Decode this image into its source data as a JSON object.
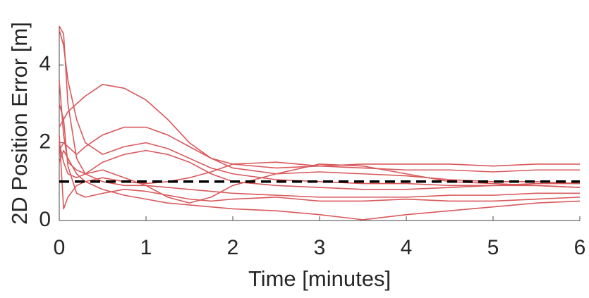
{
  "chart_data": {
    "type": "line",
    "xlabel": "Time [minutes]",
    "ylabel": "2D Position Error [m]",
    "x": [
      0,
      0.05,
      0.1,
      0.2,
      0.3,
      0.5,
      0.75,
      1,
      1.25,
      1.5,
      1.75,
      2,
      2.5,
      3,
      3.5,
      4,
      4.5,
      5,
      5.5,
      6
    ],
    "series": [
      {
        "color": "#d9595c",
        "values": [
          2.4,
          2.6,
          2.8,
          3.0,
          3.2,
          3.5,
          3.4,
          3.1,
          2.6,
          2.0,
          1.6,
          1.35,
          1.2,
          1.25,
          1.2,
          1.15,
          1.05,
          1.0,
          1.0,
          0.95
        ]
      },
      {
        "color": "#d9595c",
        "values": [
          1.8,
          2.0,
          1.9,
          1.7,
          1.9,
          2.2,
          2.4,
          2.4,
          2.2,
          1.9,
          1.6,
          1.45,
          1.35,
          1.4,
          1.35,
          1.3,
          1.3,
          1.25,
          1.3,
          1.3
        ]
      },
      {
        "color": "#d9595c",
        "values": [
          4.9,
          4.5,
          3.6,
          2.6,
          2.0,
          1.7,
          1.9,
          2.0,
          1.85,
          1.6,
          1.35,
          1.2,
          1.05,
          1.0,
          0.95,
          0.95,
          0.9,
          0.9,
          0.9,
          0.85
        ]
      },
      {
        "color": "#d9595c",
        "values": [
          5.0,
          4.8,
          3.0,
          1.6,
          1.2,
          1.0,
          0.9,
          0.9,
          0.85,
          0.8,
          0.75,
          0.7,
          0.65,
          0.6,
          0.6,
          0.6,
          0.65,
          0.65,
          0.7,
          0.7
        ]
      },
      {
        "color": "#d9595c",
        "values": [
          2.2,
          0.3,
          0.6,
          0.9,
          1.0,
          1.1,
          1.0,
          0.95,
          1.0,
          1.1,
          1.25,
          1.45,
          1.5,
          1.4,
          1.45,
          1.45,
          1.45,
          1.4,
          1.45,
          1.45
        ]
      },
      {
        "color": "#d9595c",
        "values": [
          3.6,
          2.2,
          1.5,
          1.3,
          1.2,
          1.3,
          1.1,
          0.9,
          0.6,
          0.45,
          0.6,
          0.9,
          1.2,
          1.45,
          1.4,
          1.2,
          1.0,
          0.95,
          0.9,
          0.85
        ]
      },
      {
        "color": "#d9595c",
        "values": [
          1.5,
          1.8,
          1.6,
          1.2,
          1.0,
          0.8,
          0.65,
          0.55,
          0.45,
          0.4,
          0.35,
          0.3,
          0.25,
          0.15,
          0.02,
          0.15,
          0.25,
          0.35,
          0.45,
          0.5
        ]
      },
      {
        "color": "#d9595c",
        "values": [
          2.0,
          1.5,
          1.2,
          1.1,
          1.2,
          1.5,
          1.7,
          1.8,
          1.7,
          1.5,
          1.2,
          1.0,
          0.9,
          0.85,
          0.8,
          0.8,
          0.85,
          0.9,
          0.95,
          0.95
        ]
      },
      {
        "color": "#d9595c",
        "values": [
          3.0,
          2.6,
          1.4,
          0.7,
          0.6,
          0.7,
          0.8,
          0.75,
          0.65,
          0.55,
          0.5,
          0.55,
          0.6,
          0.5,
          0.5,
          0.55,
          0.5,
          0.5,
          0.55,
          0.6
        ]
      }
    ],
    "reference_line": {
      "value": 1,
      "color": "#000000",
      "style": "dashed"
    },
    "xlim": [
      0,
      6
    ],
    "xticks": [
      0,
      1,
      2,
      3,
      4,
      5,
      6
    ],
    "ylim": [
      0,
      5
    ],
    "yticks": [
      0,
      2,
      4
    ]
  }
}
